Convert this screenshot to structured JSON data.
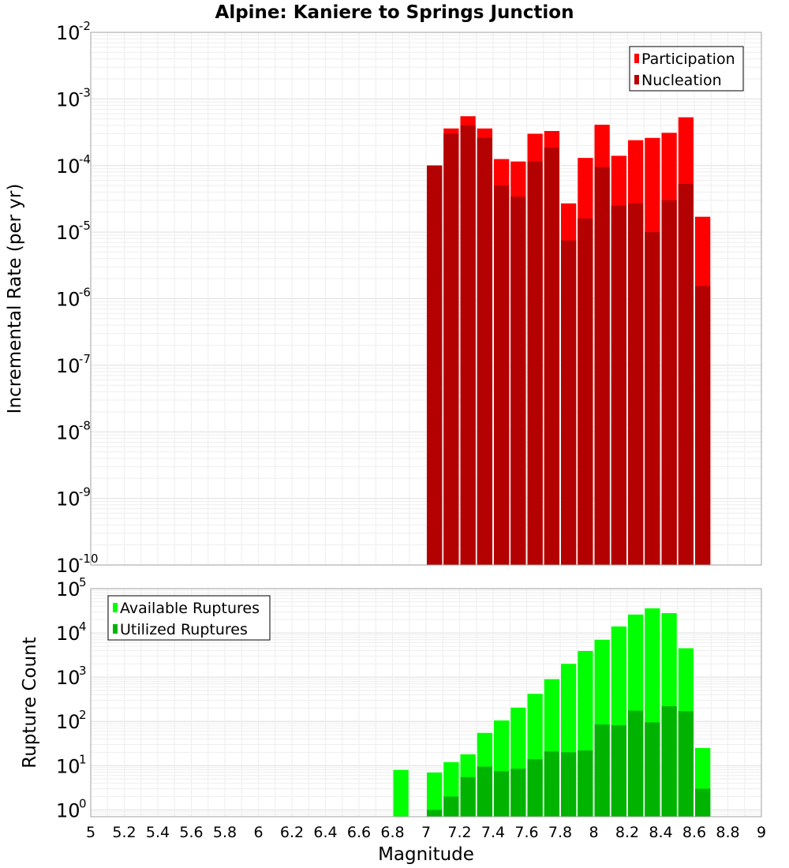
{
  "chart_data": {
    "title": "Alpine: Kaniere to Springs Junction",
    "type": "bar",
    "x_label": "Magnitude",
    "x_range": [
      5,
      9
    ],
    "x_ticks": [
      "5",
      "5.2",
      "5.4",
      "5.6",
      "5.8",
      "6",
      "6.2",
      "6.4",
      "6.6",
      "6.8",
      "7",
      "7.2",
      "7.4",
      "7.6",
      "7.8",
      "8",
      "8.2",
      "8.4",
      "8.6",
      "8.8",
      "9"
    ],
    "bin_width": 0.1,
    "panels": [
      {
        "id": "rate",
        "y_label": "Incremental Rate (per yr)",
        "y_scale": "log",
        "y_range": [
          1e-10,
          0.01
        ],
        "y_ticks": [
          {
            "base": "10",
            "exp": "-10",
            "value": 1e-10
          },
          {
            "base": "10",
            "exp": "-9",
            "value": 1e-09
          },
          {
            "base": "10",
            "exp": "-8",
            "value": 1e-08
          },
          {
            "base": "10",
            "exp": "-7",
            "value": 1e-07
          },
          {
            "base": "10",
            "exp": "-6",
            "value": 1e-06
          },
          {
            "base": "10",
            "exp": "-5",
            "value": 1e-05
          },
          {
            "base": "10",
            "exp": "-4",
            "value": 0.0001
          },
          {
            "base": "10",
            "exp": "-3",
            "value": 0.001
          },
          {
            "base": "10",
            "exp": "-2",
            "value": 0.01
          }
        ],
        "legend": {
          "position": "top-right"
        },
        "series": [
          {
            "name": "Participation",
            "color": "#ff0000",
            "x": [
              7.05,
              7.15,
              7.25,
              7.35,
              7.45,
              7.55,
              7.65,
              7.75,
              7.85,
              7.95,
              8.05,
              8.15,
              8.25,
              8.35,
              8.45,
              8.55,
              8.65
            ],
            "values": [
              0.0001,
              0.00036,
              0.00055,
              0.00036,
              0.000125,
              0.000115,
              0.0003,
              0.00033,
              2.7e-05,
              0.00013,
              0.00041,
              0.00014,
              0.00024,
              0.00026,
              0.00031,
              0.00053,
              1.7e-05
            ]
          },
          {
            "name": "Nucleation",
            "color": "#b30000",
            "x": [
              7.05,
              7.15,
              7.25,
              7.35,
              7.45,
              7.55,
              7.65,
              7.75,
              7.85,
              7.95,
              8.05,
              8.15,
              8.25,
              8.35,
              8.45,
              8.55,
              8.65
            ],
            "values": [
              0.0001,
              0.0003,
              0.0004,
              0.00026,
              5e-05,
              3.4e-05,
              0.000115,
              0.000185,
              7.5e-06,
              1.6e-05,
              9.5e-05,
              2.5e-05,
              2.7e-05,
              1e-05,
              3e-05,
              5.3e-05,
              1.55e-06
            ]
          }
        ]
      },
      {
        "id": "count",
        "y_label": "Rupture Count",
        "y_scale": "log",
        "y_range": [
          0.7,
          100000
        ],
        "y_ticks": [
          {
            "base": "10",
            "exp": "0",
            "value": 1
          },
          {
            "base": "10",
            "exp": "1",
            "value": 10
          },
          {
            "base": "10",
            "exp": "2",
            "value": 100
          },
          {
            "base": "10",
            "exp": "3",
            "value": 1000
          },
          {
            "base": "10",
            "exp": "4",
            "value": 10000
          },
          {
            "base": "10",
            "exp": "5",
            "value": 100000
          }
        ],
        "legend": {
          "position": "top-left"
        },
        "series": [
          {
            "name": "Available Ruptures",
            "color": "#00ff00",
            "x": [
              6.85,
              7.05,
              7.15,
              7.25,
              7.35,
              7.45,
              7.55,
              7.65,
              7.75,
              7.85,
              7.95,
              8.05,
              8.15,
              8.25,
              8.35,
              8.45,
              8.55,
              8.65
            ],
            "values": [
              8,
              7,
              12,
              18,
              55,
              105,
              205,
              420,
              900,
              2000,
              3900,
              7000,
              14000,
              26000,
              36000,
              28000,
              4500,
              25
            ]
          },
          {
            "name": "Utilized Ruptures",
            "color": "#00b300",
            "x": [
              6.85,
              7.05,
              7.15,
              7.25,
              7.35,
              7.45,
              7.55,
              7.65,
              7.75,
              7.85,
              7.95,
              8.05,
              8.15,
              8.25,
              8.35,
              8.45,
              8.55,
              8.65
            ],
            "values": [
              0,
              1,
              2,
              5.5,
              9.5,
              7.5,
              8.5,
              14,
              21,
              20,
              22,
              85,
              82,
              175,
              95,
              220,
              170,
              3
            ]
          }
        ]
      }
    ]
  }
}
